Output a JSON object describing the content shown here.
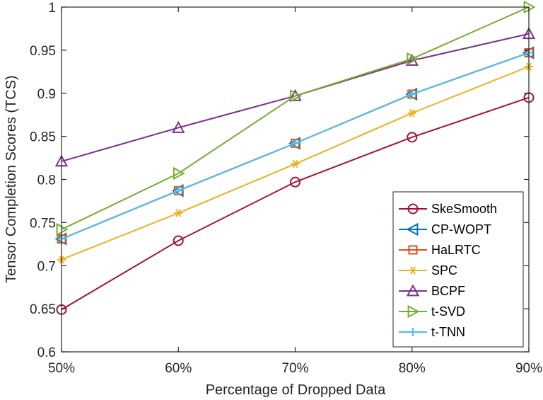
{
  "chart_data": {
    "type": "line",
    "xlabel": "Percentage of Dropped Data",
    "ylabel": "Tensor Completion Scores (TCS)",
    "categories": [
      "50%",
      "60%",
      "70%",
      "80%",
      "90%"
    ],
    "ylim": [
      0.6,
      1
    ],
    "yticks": [
      "0.6",
      "0.65",
      "0.7",
      "0.75",
      "0.8",
      "0.85",
      "0.9",
      "0.95",
      "1"
    ],
    "grid": false,
    "legend_position": "bottom-right",
    "series": [
      {
        "name": "SkeSmooth",
        "color": "#A2142F",
        "marker": "circle",
        "values": [
          0.649,
          0.729,
          0.797,
          0.849,
          0.895
        ]
      },
      {
        "name": "CP-WOPT",
        "color": "#0072BD",
        "marker": "triangle-left",
        "values": [
          0.731,
          0.787,
          0.842,
          0.899,
          0.947
        ]
      },
      {
        "name": "HaLRTC",
        "color": "#D95319",
        "marker": "square",
        "values": [
          0.731,
          0.787,
          0.842,
          0.899,
          0.947
        ]
      },
      {
        "name": "SPC",
        "color": "#EDB120",
        "marker": "asterisk",
        "values": [
          0.707,
          0.761,
          0.818,
          0.877,
          0.931
        ]
      },
      {
        "name": "BCPF",
        "color": "#7E2F8E",
        "marker": "triangle-up",
        "values": [
          0.821,
          0.86,
          0.897,
          0.938,
          0.969
        ]
      },
      {
        "name": "t-SVD",
        "color": "#77AC30",
        "marker": "triangle-right",
        "values": [
          0.742,
          0.807,
          0.897,
          0.94,
          1.0
        ]
      },
      {
        "name": "t-TNN",
        "color": "#4DBEEE",
        "marker": "plus",
        "values": [
          0.731,
          0.787,
          0.842,
          0.899,
          0.947
        ]
      }
    ]
  }
}
